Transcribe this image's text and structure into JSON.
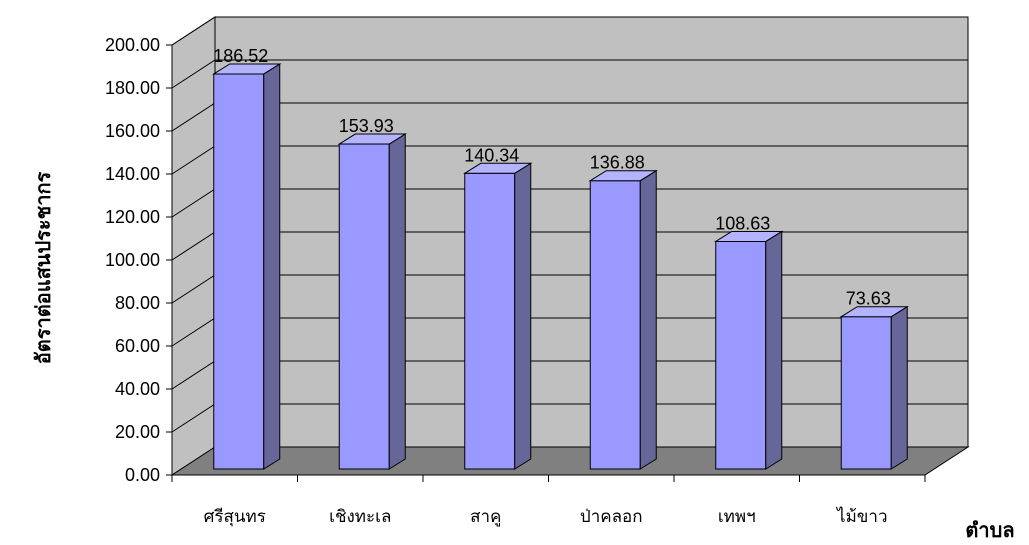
{
  "chart_data": {
    "type": "bar",
    "categories": [
      "ศรีสุนทร",
      "เชิงทะเล",
      "สาคู",
      "ป่าคลอก",
      "เทพฯ",
      "ไม้ขาว"
    ],
    "values": [
      186.52,
      153.93,
      140.34,
      136.88,
      108.63,
      73.63
    ],
    "value_labels": [
      "186.52",
      "153.93",
      "140.34",
      "136.88",
      "108.63",
      "73.63"
    ],
    "ylabel": "อัตราต่อแสนประชากร",
    "xlabel": "ตำบล",
    "ylim": [
      0,
      200
    ],
    "ytick_values": [
      0,
      20,
      40,
      60,
      80,
      100,
      120,
      140,
      160,
      180,
      200
    ],
    "ytick_labels": [
      "0.00",
      "20.00",
      "40.00",
      "60.00",
      "80.00",
      "100.00",
      "120.00",
      "140.00",
      "160.00",
      "180.00",
      "200.00"
    ],
    "grid": true,
    "legend": "none",
    "style": "3d-column",
    "colors": {
      "bar_front": "#9999ff",
      "bar_side": "#666699",
      "bar_top": "#b3b3ff",
      "wall": "#c0c0c0",
      "floor": "#808080",
      "grid": "#000000"
    }
  }
}
